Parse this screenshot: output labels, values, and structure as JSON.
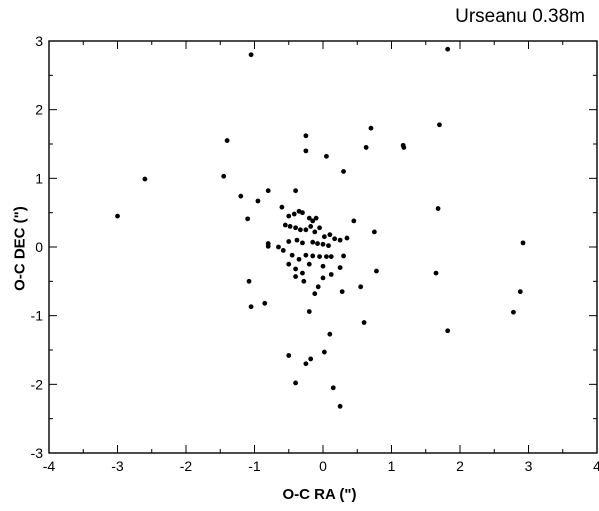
{
  "chart_data": {
    "type": "scatter",
    "title": "Urseanu 0.38m",
    "xlabel": "O-C RA (\")",
    "ylabel": "O-C DEC (\")",
    "xlim": [
      -4,
      4
    ],
    "ylim": [
      -3,
      3
    ],
    "xticks": [
      -4,
      -3,
      -2,
      -1,
      0,
      1,
      2,
      3,
      4
    ],
    "yticks": [
      -3,
      -2,
      -1,
      0,
      1,
      2,
      3
    ],
    "grid": false,
    "legend": "none",
    "marker_color": "#000000",
    "points": [
      [
        -1.05,
        2.8
      ],
      [
        1.82,
        2.88
      ],
      [
        -0.25,
        1.62
      ],
      [
        -0.25,
        1.4
      ],
      [
        -1.4,
        1.55
      ],
      [
        0.05,
        1.32
      ],
      [
        0.7,
        1.73
      ],
      [
        0.63,
        1.45
      ],
      [
        1.17,
        1.48
      ],
      [
        1.18,
        1.45
      ],
      [
        1.7,
        1.78
      ],
      [
        -2.6,
        0.99
      ],
      [
        -1.45,
        1.03
      ],
      [
        -1.2,
        0.74
      ],
      [
        0.3,
        1.1
      ],
      [
        -3.0,
        0.45
      ],
      [
        -1.1,
        0.41
      ],
      [
        -0.95,
        0.67
      ],
      [
        -0.8,
        0.82
      ],
      [
        -0.4,
        0.82
      ],
      [
        -0.6,
        0.58
      ],
      [
        -0.5,
        0.45
      ],
      [
        -0.42,
        0.48
      ],
      [
        -0.35,
        0.52
      ],
      [
        -0.3,
        0.5
      ],
      [
        -0.2,
        0.42
      ],
      [
        -0.15,
        0.38
      ],
      [
        -0.1,
        0.42
      ],
      [
        0.45,
        0.38
      ],
      [
        1.68,
        0.56
      ],
      [
        -0.55,
        0.32
      ],
      [
        -0.48,
        0.3
      ],
      [
        -0.4,
        0.28
      ],
      [
        -0.33,
        0.25
      ],
      [
        -0.25,
        0.25
      ],
      [
        -0.18,
        0.3
      ],
      [
        -0.12,
        0.22
      ],
      [
        -0.05,
        0.28
      ],
      [
        0.02,
        0.15
      ],
      [
        0.1,
        0.18
      ],
      [
        0.17,
        0.12
      ],
      [
        0.25,
        0.1
      ],
      [
        0.35,
        0.13
      ],
      [
        0.75,
        0.22
      ],
      [
        -0.8,
        0.05
      ],
      [
        -0.8,
        0.01
      ],
      [
        -0.65,
        0.0
      ],
      [
        -0.5,
        0.08
      ],
      [
        -0.38,
        0.1
      ],
      [
        -0.3,
        0.06
      ],
      [
        -0.15,
        0.07
      ],
      [
        -0.08,
        0.05
      ],
      [
        0.0,
        0.04
      ],
      [
        0.08,
        0.02
      ],
      [
        2.92,
        0.06
      ],
      [
        -0.58,
        -0.05
      ],
      [
        -0.45,
        -0.12
      ],
      [
        -0.35,
        -0.18
      ],
      [
        -0.25,
        -0.12
      ],
      [
        -0.15,
        -0.13
      ],
      [
        -0.05,
        -0.14
      ],
      [
        0.05,
        -0.14
      ],
      [
        0.12,
        -0.14
      ],
      [
        0.3,
        -0.13
      ],
      [
        -0.5,
        -0.25
      ],
      [
        -0.4,
        -0.32
      ],
      [
        -0.3,
        -0.38
      ],
      [
        -0.2,
        -0.25
      ],
      [
        0.0,
        -0.28
      ],
      [
        0.25,
        -0.3
      ],
      [
        0.78,
        -0.35
      ],
      [
        1.65,
        -0.38
      ],
      [
        -0.4,
        -0.43
      ],
      [
        -0.28,
        -0.5
      ],
      [
        0.0,
        -0.45
      ],
      [
        0.12,
        -0.4
      ],
      [
        -1.08,
        -0.5
      ],
      [
        0.55,
        -0.58
      ],
      [
        -0.12,
        -0.68
      ],
      [
        -0.07,
        -0.58
      ],
      [
        0.28,
        -0.65
      ],
      [
        2.88,
        -0.65
      ],
      [
        -0.85,
        -0.82
      ],
      [
        -1.05,
        -0.87
      ],
      [
        -0.2,
        -0.94
      ],
      [
        2.78,
        -0.95
      ],
      [
        0.6,
        -1.1
      ],
      [
        1.82,
        -1.22
      ],
      [
        0.1,
        -1.27
      ],
      [
        0.02,
        -1.53
      ],
      [
        -0.5,
        -1.58
      ],
      [
        -0.18,
        -1.63
      ],
      [
        -0.25,
        -1.7
      ],
      [
        -0.4,
        -1.98
      ],
      [
        0.15,
        -2.05
      ],
      [
        0.25,
        -2.32
      ]
    ]
  }
}
